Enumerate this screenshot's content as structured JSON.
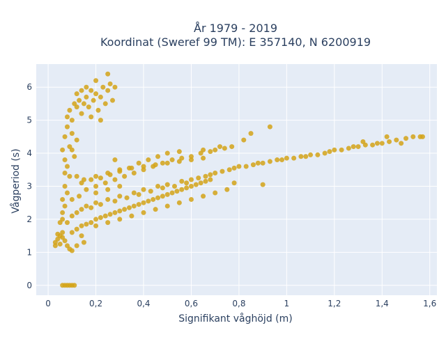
{
  "chart_data": {
    "type": "scatter",
    "title_lines": [
      "År 1979 - 2019",
      "Koordinat (Sweref 99 TM): E 357140, N 6200919"
    ],
    "xlabel": "Signifikant våghöjd (m)",
    "ylabel": "Vågperiod (s)",
    "xlim": [
      -0.05,
      1.63
    ],
    "ylim": [
      -0.3,
      6.7
    ],
    "x_ticks": [
      0,
      0.2,
      0.4,
      0.6,
      0.8,
      1.0,
      1.2,
      1.4,
      1.6
    ],
    "x_tick_labels": [
      "0",
      "0,2",
      "0,4",
      "0,6",
      "0,8",
      "1",
      "1,2",
      "1,4",
      "1,6"
    ],
    "y_ticks": [
      0,
      1,
      2,
      3,
      4,
      5,
      6
    ],
    "y_tick_labels": [
      "0",
      "1",
      "2",
      "3",
      "4",
      "5",
      "6"
    ],
    "grid": true,
    "legend": "none",
    "colors": {
      "marker": "#d4a317",
      "plot_bg": "#e5ecf6",
      "grid": "#ffffff",
      "text": "#2a3f5f"
    },
    "series": [
      {
        "values_note_free": true,
        "points": [
          [
            0.03,
            1.3
          ],
          [
            0.04,
            1.4
          ],
          [
            0.05,
            1.5
          ],
          [
            0.03,
            1.2
          ],
          [
            0.06,
            1.6
          ],
          [
            0.05,
            1.25
          ],
          [
            0.07,
            1.35
          ],
          [
            0.08,
            1.2
          ],
          [
            0.09,
            1.1
          ],
          [
            0.1,
            1.05
          ],
          [
            0.12,
            1.2
          ],
          [
            0.14,
            1.5
          ],
          [
            0.15,
            1.3
          ],
          [
            0.04,
            1.55
          ],
          [
            0.06,
            1.45
          ],
          [
            0.06,
            2.2
          ],
          [
            0.06,
            2.6
          ],
          [
            0.07,
            3.0
          ],
          [
            0.07,
            3.4
          ],
          [
            0.07,
            3.8
          ],
          [
            0.06,
            4.1
          ],
          [
            0.07,
            4.5
          ],
          [
            0.08,
            4.8
          ],
          [
            0.08,
            5.1
          ],
          [
            0.09,
            5.3
          ],
          [
            0.09,
            4.2
          ],
          [
            0.08,
            3.6
          ],
          [
            0.1,
            4.6
          ],
          [
            0.1,
            5.0
          ],
          [
            0.11,
            5.5
          ],
          [
            0.12,
            5.4
          ],
          [
            0.12,
            5.8
          ],
          [
            0.13,
            5.6
          ],
          [
            0.14,
            5.9
          ],
          [
            0.14,
            5.2
          ],
          [
            0.15,
            5.5
          ],
          [
            0.16,
            5.7
          ],
          [
            0.16,
            6.0
          ],
          [
            0.17,
            5.4
          ],
          [
            0.18,
            5.9
          ],
          [
            0.18,
            5.1
          ],
          [
            0.19,
            5.6
          ],
          [
            0.2,
            5.8
          ],
          [
            0.2,
            6.2
          ],
          [
            0.21,
            5.3
          ],
          [
            0.22,
            5.7
          ],
          [
            0.22,
            5.0
          ],
          [
            0.23,
            6.0
          ],
          [
            0.24,
            5.5
          ],
          [
            0.25,
            5.9
          ],
          [
            0.26,
            6.1
          ],
          [
            0.27,
            5.6
          ],
          [
            0.28,
            6.0
          ],
          [
            0.25,
            6.4
          ],
          [
            0.12,
            4.4
          ],
          [
            0.11,
            3.9
          ],
          [
            0.1,
            4.1
          ],
          [
            0.09,
            3.3
          ],
          [
            0.08,
            2.8
          ],
          [
            0.07,
            2.4
          ],
          [
            0.06,
            0.0
          ],
          [
            0.07,
            0.0
          ],
          [
            0.08,
            0.0
          ],
          [
            0.09,
            0.0
          ],
          [
            0.1,
            0.0
          ],
          [
            0.11,
            0.0
          ],
          [
            0.05,
            1.9
          ],
          [
            0.06,
            2.0
          ],
          [
            0.08,
            1.9
          ],
          [
            0.1,
            2.1
          ],
          [
            0.12,
            2.2
          ],
          [
            0.14,
            2.3
          ],
          [
            0.16,
            2.4
          ],
          [
            0.18,
            2.35
          ],
          [
            0.2,
            2.5
          ],
          [
            0.22,
            2.45
          ],
          [
            0.25,
            2.6
          ],
          [
            0.28,
            2.55
          ],
          [
            0.3,
            2.7
          ],
          [
            0.33,
            2.65
          ],
          [
            0.36,
            2.8
          ],
          [
            0.38,
            2.75
          ],
          [
            0.4,
            2.9
          ],
          [
            0.43,
            2.85
          ],
          [
            0.46,
            3.0
          ],
          [
            0.48,
            2.95
          ],
          [
            0.5,
            3.05
          ],
          [
            0.53,
            3.0
          ],
          [
            0.56,
            3.15
          ],
          [
            0.58,
            3.1
          ],
          [
            0.6,
            3.2
          ],
          [
            0.63,
            3.25
          ],
          [
            0.66,
            3.3
          ],
          [
            0.68,
            3.35
          ],
          [
            0.7,
            3.4
          ],
          [
            0.73,
            3.45
          ],
          [
            0.76,
            3.5
          ],
          [
            0.78,
            3.55
          ],
          [
            0.8,
            3.6
          ],
          [
            0.83,
            3.6
          ],
          [
            0.86,
            3.65
          ],
          [
            0.88,
            3.7
          ],
          [
            0.9,
            3.7
          ],
          [
            0.93,
            3.75
          ],
          [
            0.96,
            3.8
          ],
          [
            0.98,
            3.8
          ],
          [
            1.0,
            3.85
          ],
          [
            1.03,
            3.85
          ],
          [
            1.06,
            3.9
          ],
          [
            1.08,
            3.9
          ],
          [
            1.1,
            3.95
          ],
          [
            1.13,
            3.95
          ],
          [
            1.16,
            4.0
          ],
          [
            1.18,
            4.05
          ],
          [
            1.2,
            4.1
          ],
          [
            1.23,
            4.1
          ],
          [
            1.26,
            4.15
          ],
          [
            1.28,
            4.2
          ],
          [
            1.3,
            4.2
          ],
          [
            1.33,
            4.25
          ],
          [
            1.36,
            4.25
          ],
          [
            1.38,
            4.3
          ],
          [
            1.4,
            4.3
          ],
          [
            1.43,
            4.35
          ],
          [
            1.46,
            4.4
          ],
          [
            1.5,
            4.45
          ],
          [
            1.53,
            4.5
          ],
          [
            1.56,
            4.5
          ],
          [
            1.57,
            4.5
          ],
          [
            1.42,
            4.5
          ],
          [
            1.48,
            4.3
          ],
          [
            1.32,
            4.35
          ],
          [
            0.1,
            1.6
          ],
          [
            0.12,
            1.7
          ],
          [
            0.14,
            1.8
          ],
          [
            0.16,
            1.85
          ],
          [
            0.18,
            1.9
          ],
          [
            0.2,
            2.0
          ],
          [
            0.22,
            2.05
          ],
          [
            0.24,
            2.1
          ],
          [
            0.26,
            2.15
          ],
          [
            0.28,
            2.2
          ],
          [
            0.3,
            2.25
          ],
          [
            0.32,
            2.3
          ],
          [
            0.34,
            2.35
          ],
          [
            0.36,
            2.4
          ],
          [
            0.38,
            2.45
          ],
          [
            0.4,
            2.5
          ],
          [
            0.42,
            2.55
          ],
          [
            0.44,
            2.6
          ],
          [
            0.46,
            2.65
          ],
          [
            0.48,
            2.7
          ],
          [
            0.5,
            2.75
          ],
          [
            0.52,
            2.8
          ],
          [
            0.54,
            2.85
          ],
          [
            0.56,
            2.9
          ],
          [
            0.58,
            2.95
          ],
          [
            0.6,
            3.0
          ],
          [
            0.62,
            3.05
          ],
          [
            0.64,
            3.1
          ],
          [
            0.66,
            3.15
          ],
          [
            0.68,
            3.2
          ],
          [
            0.1,
            2.6
          ],
          [
            0.13,
            2.7
          ],
          [
            0.16,
            2.9
          ],
          [
            0.2,
            3.0
          ],
          [
            0.24,
            3.1
          ],
          [
            0.28,
            3.2
          ],
          [
            0.32,
            3.3
          ],
          [
            0.36,
            3.4
          ],
          [
            0.4,
            3.5
          ],
          [
            0.44,
            3.6
          ],
          [
            0.48,
            3.7
          ],
          [
            0.52,
            3.8
          ],
          [
            0.56,
            3.85
          ],
          [
            0.6,
            3.9
          ],
          [
            0.64,
            4.0
          ],
          [
            0.68,
            4.05
          ],
          [
            0.7,
            4.1
          ],
          [
            0.74,
            4.15
          ],
          [
            0.77,
            4.2
          ],
          [
            0.72,
            4.2
          ],
          [
            0.46,
            3.9
          ],
          [
            0.5,
            4.0
          ],
          [
            0.42,
            3.8
          ],
          [
            0.38,
            3.7
          ],
          [
            0.34,
            3.55
          ],
          [
            0.3,
            3.45
          ],
          [
            0.26,
            3.35
          ],
          [
            0.22,
            3.25
          ],
          [
            0.18,
            3.2
          ],
          [
            0.14,
            3.1
          ],
          [
            0.12,
            3.3
          ],
          [
            0.15,
            3.2
          ],
          [
            0.2,
            3.3
          ],
          [
            0.25,
            3.4
          ],
          [
            0.3,
            3.5
          ],
          [
            0.35,
            3.55
          ],
          [
            0.4,
            3.6
          ],
          [
            0.45,
            3.65
          ],
          [
            0.5,
            3.7
          ],
          [
            0.55,
            3.75
          ],
          [
            0.6,
            3.8
          ],
          [
            0.65,
            3.85
          ],
          [
            0.2,
            1.8
          ],
          [
            0.25,
            1.9
          ],
          [
            0.3,
            2.0
          ],
          [
            0.35,
            2.1
          ],
          [
            0.4,
            2.2
          ],
          [
            0.45,
            2.3
          ],
          [
            0.5,
            2.4
          ],
          [
            0.55,
            2.5
          ],
          [
            0.6,
            2.6
          ],
          [
            0.65,
            2.7
          ],
          [
            0.7,
            2.8
          ],
          [
            0.75,
            2.9
          ],
          [
            0.82,
            4.4
          ],
          [
            0.85,
            4.6
          ],
          [
            0.93,
            4.8
          ],
          [
            0.9,
            3.05
          ],
          [
            0.78,
            3.1
          ],
          [
            0.3,
            3.0
          ],
          [
            0.55,
            4.05
          ],
          [
            0.65,
            4.1
          ],
          [
            0.2,
            2.8
          ],
          [
            0.25,
            2.9
          ],
          [
            0.28,
            3.8
          ]
        ]
      }
    ]
  }
}
